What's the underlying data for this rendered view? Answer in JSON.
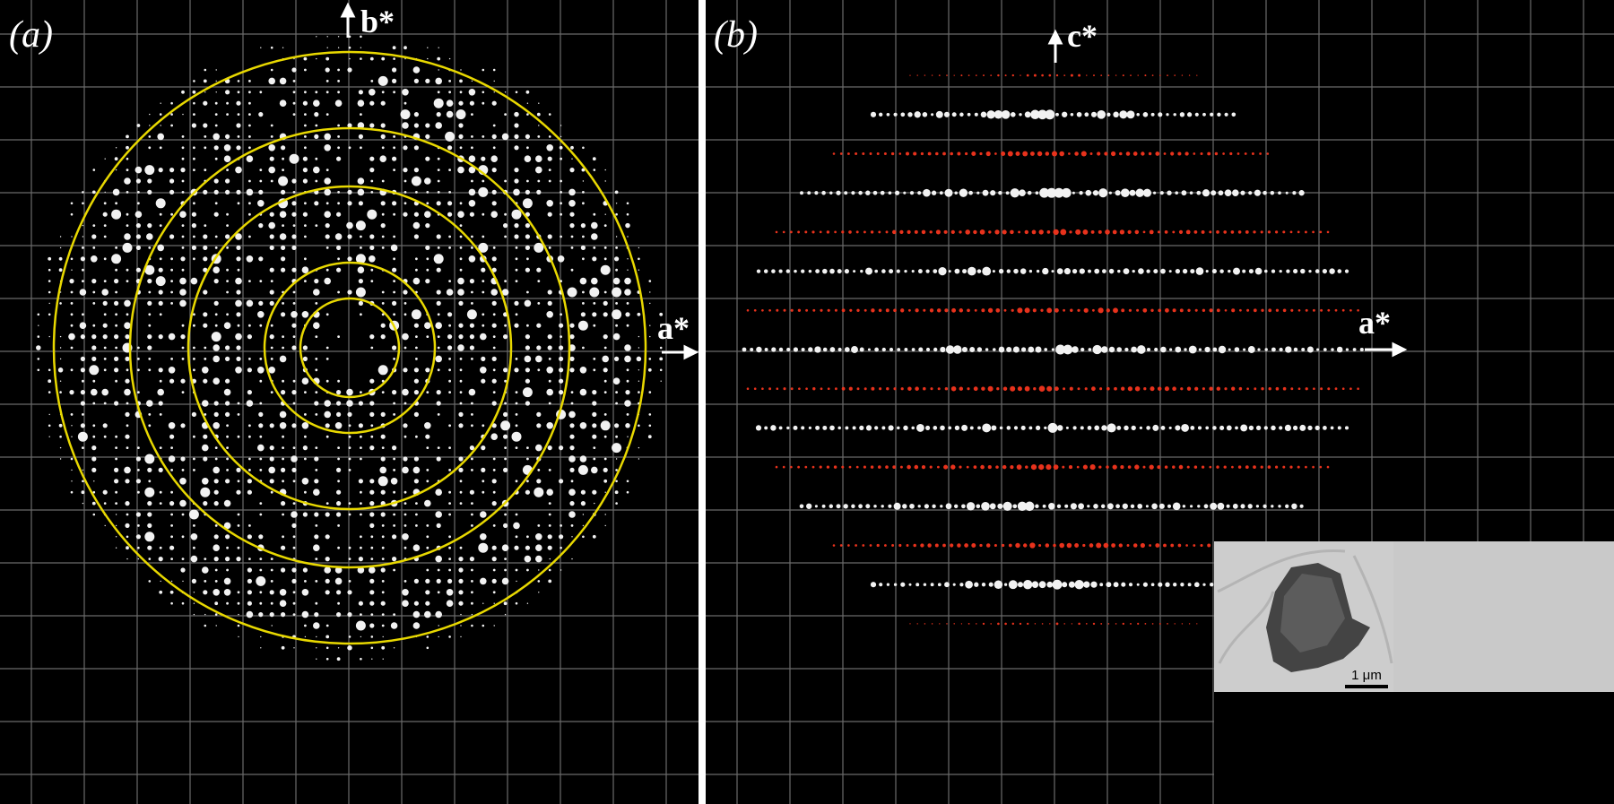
{
  "panel_a": {
    "label": "(a)",
    "axis_vertical": "b*",
    "axis_horizontal": "a*"
  },
  "panel_b": {
    "label": "(b)",
    "axis_vertical": "c*",
    "axis_horizontal": "a*",
    "inset_scale_bar": "1 μm"
  }
}
